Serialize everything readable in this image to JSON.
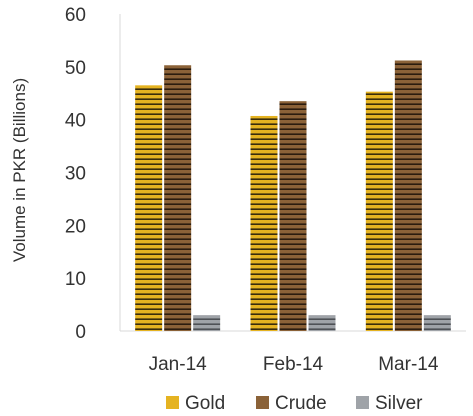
{
  "chart_data": {
    "type": "bar",
    "categories": [
      "Jan-14",
      "Feb-14",
      "Mar-14"
    ],
    "series": [
      {
        "name": "Gold",
        "values": [
          46.5,
          40.7,
          45.3
        ],
        "color": "#E5B321",
        "stripe": "#3A2D0A"
      },
      {
        "name": "Crude",
        "values": [
          50.3,
          43.5,
          51.2
        ],
        "color": "#8B6238",
        "stripe": "#2B1C0E"
      },
      {
        "name": "Silver",
        "values": [
          3.0,
          3.0,
          3.0
        ],
        "color": "#9FA3A8",
        "stripe": "#4E5156"
      }
    ],
    "title": "",
    "xlabel": "",
    "ylabel": "Volume in PKR (Billions)",
    "ylim": [
      0,
      60
    ],
    "yticks": [
      0,
      10,
      20,
      30,
      40,
      50,
      60
    ],
    "grid": false,
    "legend_position": "bottom"
  }
}
